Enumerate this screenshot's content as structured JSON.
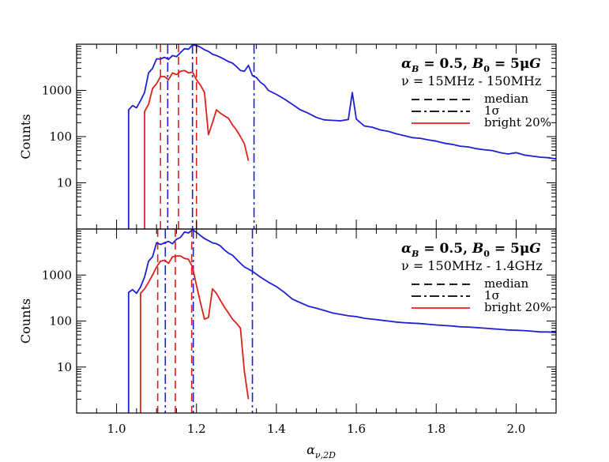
{
  "chart_data": [
    {
      "type": "line",
      "panel": "top",
      "title": "",
      "xlabel": "",
      "ylabel": "Counts",
      "yscale": "log",
      "ylim": [
        1,
        10000
      ],
      "xlim": [
        0.9,
        2.1
      ],
      "y_tick_values": [
        10,
        100,
        1000
      ],
      "y_tick_labels": [
        "10",
        "100",
        "1000"
      ],
      "legend": {
        "placement": "top-right",
        "title": "α_B = 0.5, B_0 = 5μG",
        "title_parts": {
          "alpha": "α",
          "alpha_sub": "B",
          "eq1": " = 0.5, ",
          "b": "B",
          "b_sub": "0",
          "eq2": " = 5μ",
          "g": "G"
        },
        "subtitle": "ν = 15MHz - 150MHz",
        "entries": [
          {
            "label": "median",
            "style": "dashed",
            "color": "#000000"
          },
          {
            "label": "1σ",
            "style": "dashdot",
            "color": "#000000"
          },
          {
            "label": "bright 20%",
            "style": "solid",
            "color": "#e0201a"
          }
        ]
      },
      "series": [
        {
          "style": "solid",
          "color": "#1f1fd6",
          "points": [
            [
              1.03,
              1.0
            ],
            [
              1.03,
              380
            ],
            [
              1.04,
              470
            ],
            [
              1.05,
              420
            ],
            [
              1.06,
              600
            ],
            [
              1.07,
              900
            ],
            [
              1.08,
              2400
            ],
            [
              1.09,
              3000
            ],
            [
              1.1,
              4800
            ],
            [
              1.11,
              4800
            ],
            [
              1.12,
              5200
            ],
            [
              1.13,
              4700
            ],
            [
              1.14,
              5700
            ],
            [
              1.15,
              5400
            ],
            [
              1.16,
              6600
            ],
            [
              1.17,
              8000
            ],
            [
              1.18,
              7800
            ],
            [
              1.19,
              9600
            ],
            [
              1.2,
              9400
            ],
            [
              1.21,
              8600
            ],
            [
              1.22,
              7600
            ],
            [
              1.23,
              7000
            ],
            [
              1.24,
              6100
            ],
            [
              1.25,
              5700
            ],
            [
              1.26,
              5200
            ],
            [
              1.27,
              4700
            ],
            [
              1.28,
              4200
            ],
            [
              1.29,
              3900
            ],
            [
              1.3,
              3300
            ],
            [
              1.31,
              2700
            ],
            [
              1.32,
              2600
            ],
            [
              1.33,
              3500
            ],
            [
              1.34,
              2100
            ],
            [
              1.35,
              1900
            ],
            [
              1.36,
              1500
            ],
            [
              1.37,
              1300
            ],
            [
              1.38,
              1000
            ],
            [
              1.4,
              820
            ],
            [
              1.42,
              650
            ],
            [
              1.44,
              500
            ],
            [
              1.46,
              380
            ],
            [
              1.48,
              320
            ],
            [
              1.5,
              260
            ],
            [
              1.52,
              230
            ],
            [
              1.54,
              225
            ],
            [
              1.56,
              220
            ],
            [
              1.58,
              235
            ],
            [
              1.59,
              900
            ],
            [
              1.6,
              240
            ],
            [
              1.62,
              170
            ],
            [
              1.64,
              160
            ],
            [
              1.66,
              140
            ],
            [
              1.68,
              130
            ],
            [
              1.7,
              115
            ],
            [
              1.72,
              105
            ],
            [
              1.74,
              95
            ],
            [
              1.76,
              92
            ],
            [
              1.78,
              85
            ],
            [
              1.8,
              80
            ],
            [
              1.82,
              72
            ],
            [
              1.84,
              68
            ],
            [
              1.86,
              62
            ],
            [
              1.88,
              60
            ],
            [
              1.9,
              55
            ],
            [
              1.92,
              52
            ],
            [
              1.94,
              50
            ],
            [
              1.96,
              45
            ],
            [
              1.98,
              42
            ],
            [
              2.0,
              45
            ],
            [
              2.02,
              40
            ],
            [
              2.04,
              38
            ],
            [
              2.06,
              36
            ],
            [
              2.08,
              35
            ],
            [
              2.1,
              33
            ]
          ]
        },
        {
          "name": "bright 20%",
          "style": "solid",
          "color": "#e0201a",
          "points": [
            [
              1.07,
              1.0
            ],
            [
              1.07,
              350
            ],
            [
              1.08,
              500
            ],
            [
              1.09,
              1100
            ],
            [
              1.1,
              1400
            ],
            [
              1.11,
              2000
            ],
            [
              1.12,
              2000
            ],
            [
              1.13,
              1700
            ],
            [
              1.14,
              2400
            ],
            [
              1.15,
              2200
            ],
            [
              1.16,
              2600
            ],
            [
              1.17,
              2700
            ],
            [
              1.18,
              2400
            ],
            [
              1.19,
              2500
            ],
            [
              1.2,
              1700
            ],
            [
              1.21,
              1300
            ],
            [
              1.22,
              900
            ],
            [
              1.23,
              110
            ],
            [
              1.24,
              200
            ],
            [
              1.25,
              380
            ],
            [
              1.26,
              320
            ],
            [
              1.27,
              280
            ],
            [
              1.28,
              250
            ],
            [
              1.29,
              180
            ],
            [
              1.3,
              140
            ],
            [
              1.31,
              100
            ],
            [
              1.32,
              70
            ],
            [
              1.33,
              30
            ]
          ]
        }
      ],
      "vlines": [
        {
          "x": 1.155,
          "style": "dashed",
          "color": "#e0201a",
          "role": "median"
        },
        {
          "x": 1.11,
          "style": "dashed",
          "color": "#e0201a",
          "role": "1σ"
        },
        {
          "x": 1.2,
          "style": "dashed",
          "color": "#e0201a",
          "role": "1σ"
        },
        {
          "x": 1.128,
          "style": "dashdot",
          "color": "#1f1fd6",
          "role": "1σ"
        },
        {
          "x": 1.19,
          "style": "dashdot",
          "color": "#1f1fd6",
          "role": "median"
        },
        {
          "x": 1.344,
          "style": "dashdot",
          "color": "#1f1fd6",
          "role": "1σ"
        }
      ]
    },
    {
      "type": "line",
      "panel": "bottom",
      "title": "",
      "xlabel": "α_ν,2D",
      "xlabel_parts": {
        "alpha": "α",
        "sub": "ν,2D"
      },
      "ylabel": "Counts",
      "yscale": "log",
      "ylim": [
        1,
        10000
      ],
      "xlim": [
        0.9,
        2.1
      ],
      "x_tick_values": [
        1.0,
        1.2,
        1.4,
        1.6,
        1.8,
        2.0
      ],
      "x_tick_labels": [
        "1.0",
        "1.2",
        "1.4",
        "1.6",
        "1.8",
        "2.0"
      ],
      "y_tick_values": [
        10,
        100,
        1000
      ],
      "y_tick_labels": [
        "10",
        "100",
        "1000"
      ],
      "legend": {
        "placement": "top-right",
        "title": "α_B = 0.5, B_0 = 5μG",
        "title_parts": {
          "alpha": "α",
          "alpha_sub": "B",
          "eq1": " = 0.5, ",
          "b": "B",
          "b_sub": "0",
          "eq2": " = 5μ",
          "g": "G"
        },
        "subtitle": "ν = 150MHz - 1.4GHz",
        "entries": [
          {
            "label": "median",
            "style": "dashed",
            "color": "#000000"
          },
          {
            "label": "1σ",
            "style": "dashdot",
            "color": "#000000"
          },
          {
            "label": "bright 20%",
            "style": "solid",
            "color": "#e0201a"
          }
        ]
      },
      "series": [
        {
          "style": "solid",
          "color": "#1f1fd6",
          "points": [
            [
              1.03,
              1.0
            ],
            [
              1.03,
              420
            ],
            [
              1.04,
              480
            ],
            [
              1.05,
              400
            ],
            [
              1.06,
              550
            ],
            [
              1.07,
              900
            ],
            [
              1.08,
              2000
            ],
            [
              1.09,
              2500
            ],
            [
              1.1,
              5000
            ],
            [
              1.11,
              4600
            ],
            [
              1.12,
              5000
            ],
            [
              1.13,
              5400
            ],
            [
              1.14,
              4800
            ],
            [
              1.15,
              6000
            ],
            [
              1.16,
              6600
            ],
            [
              1.17,
              8600
            ],
            [
              1.18,
              8200
            ],
            [
              1.19,
              9600
            ],
            [
              1.2,
              8500
            ],
            [
              1.21,
              7200
            ],
            [
              1.22,
              6200
            ],
            [
              1.23,
              5600
            ],
            [
              1.24,
              5000
            ],
            [
              1.25,
              4800
            ],
            [
              1.26,
              4300
            ],
            [
              1.27,
              3500
            ],
            [
              1.28,
              3000
            ],
            [
              1.29,
              2700
            ],
            [
              1.3,
              2200
            ],
            [
              1.31,
              1800
            ],
            [
              1.32,
              1500
            ],
            [
              1.33,
              1350
            ],
            [
              1.34,
              1200
            ],
            [
              1.36,
              900
            ],
            [
              1.38,
              700
            ],
            [
              1.4,
              560
            ],
            [
              1.42,
              420
            ],
            [
              1.44,
              300
            ],
            [
              1.46,
              250
            ],
            [
              1.48,
              210
            ],
            [
              1.5,
              190
            ],
            [
              1.52,
              170
            ],
            [
              1.54,
              150
            ],
            [
              1.56,
              140
            ],
            [
              1.58,
              130
            ],
            [
              1.6,
              125
            ],
            [
              1.62,
              115
            ],
            [
              1.64,
              110
            ],
            [
              1.66,
              105
            ],
            [
              1.68,
              100
            ],
            [
              1.7,
              95
            ],
            [
              1.72,
              92
            ],
            [
              1.74,
              90
            ],
            [
              1.76,
              88
            ],
            [
              1.78,
              85
            ],
            [
              1.8,
              82
            ],
            [
              1.82,
              80
            ],
            [
              1.84,
              78
            ],
            [
              1.86,
              75
            ],
            [
              1.88,
              74
            ],
            [
              1.9,
              72
            ],
            [
              1.92,
              70
            ],
            [
              1.94,
              68
            ],
            [
              1.96,
              66
            ],
            [
              1.98,
              64
            ],
            [
              2.0,
              63
            ],
            [
              2.02,
              62
            ],
            [
              2.04,
              60
            ],
            [
              2.06,
              58
            ],
            [
              2.08,
              58
            ],
            [
              2.1,
              56
            ]
          ]
        },
        {
          "name": "bright 20%",
          "style": "solid",
          "color": "#e0201a",
          "points": [
            [
              1.06,
              1.0
            ],
            [
              1.06,
              400
            ],
            [
              1.07,
              500
            ],
            [
              1.08,
              700
            ],
            [
              1.09,
              1000
            ],
            [
              1.1,
              1500
            ],
            [
              1.11,
              2000
            ],
            [
              1.12,
              2100
            ],
            [
              1.13,
              1800
            ],
            [
              1.14,
              2500
            ],
            [
              1.15,
              2600
            ],
            [
              1.16,
              2600
            ],
            [
              1.17,
              2300
            ],
            [
              1.18,
              2200
            ],
            [
              1.19,
              1500
            ],
            [
              1.2,
              600
            ],
            [
              1.21,
              250
            ],
            [
              1.22,
              110
            ],
            [
              1.23,
              120
            ],
            [
              1.24,
              500
            ],
            [
              1.25,
              400
            ],
            [
              1.26,
              280
            ],
            [
              1.27,
              200
            ],
            [
              1.28,
              150
            ],
            [
              1.29,
              110
            ],
            [
              1.3,
              90
            ],
            [
              1.31,
              70
            ],
            [
              1.32,
              8
            ],
            [
              1.33,
              2
            ]
          ]
        }
      ],
      "vlines": [
        {
          "x": 1.147,
          "style": "dashed",
          "color": "#e0201a",
          "role": "median"
        },
        {
          "x": 1.103,
          "style": "dashed",
          "color": "#e0201a",
          "role": "1σ"
        },
        {
          "x": 1.188,
          "style": "dashed",
          "color": "#e0201a",
          "role": "1σ"
        },
        {
          "x": 1.122,
          "style": "dashdot",
          "color": "#1f1fd6",
          "role": "1σ"
        },
        {
          "x": 1.192,
          "style": "dashdot",
          "color": "#1f1fd6",
          "role": "median"
        },
        {
          "x": 1.34,
          "style": "dashdot",
          "color": "#1f1fd6",
          "role": "1σ"
        }
      ]
    }
  ]
}
